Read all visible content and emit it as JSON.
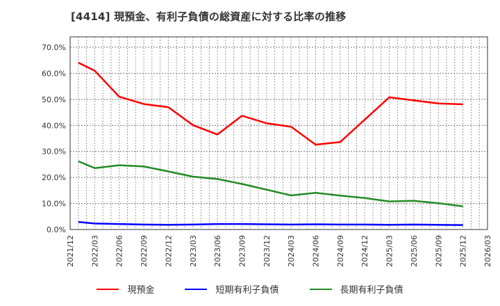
{
  "title": "[4414]  現預金、有利子負債の総資産に対する比率の推移",
  "colors": {
    "cash": "#ff0000",
    "short_debt": "#0000ff",
    "long_debt": "#228b22",
    "grid": "#999999",
    "axis": "#333333"
  },
  "legend": [
    {
      "label": "現預金",
      "color": "#ff0000"
    },
    {
      "label": "短期有利子負債",
      "color": "#0000ff"
    },
    {
      "label": "長期有利子負債",
      "color": "#228b22"
    }
  ],
  "y_ticks": [
    "0.0%",
    "10.0%",
    "20.0%",
    "30.0%",
    "40.0%",
    "50.0%",
    "60.0%",
    "70.0%"
  ],
  "x_ticks": [
    "2021/12",
    "2022/03",
    "2022/06",
    "2022/09",
    "2022/12",
    "2023/03",
    "2023/06",
    "2023/09",
    "2023/12",
    "2024/03",
    "2024/06",
    "2024/09",
    "2024/12",
    "2025/03",
    "2025/06",
    "2025/09",
    "2025/12",
    "2026/03"
  ],
  "chart_data": {
    "type": "line",
    "title": "[4414]  現預金、有利子負債の総資産に対する比率の推移",
    "xlabel": "",
    "ylabel": "",
    "ylim": [
      0,
      70
    ],
    "y_format": "percent",
    "grid": true,
    "legend_position": "bottom",
    "x": [
      "2022/01",
      "2022/03",
      "2022/06",
      "2022/09",
      "2022/12",
      "2023/03",
      "2023/06",
      "2023/09",
      "2023/12",
      "2024/03",
      "2024/06",
      "2024/09",
      "2024/12",
      "2025/03",
      "2025/06",
      "2025/09",
      "2025/12"
    ],
    "series": [
      {
        "name": "現預金",
        "color": "#ff0000",
        "values": [
          64.1,
          61.0,
          51.0,
          48.2,
          47.0,
          40.1,
          36.5,
          43.7,
          40.8,
          39.5,
          32.6,
          33.6,
          42.2,
          50.8,
          49.6,
          48.4,
          48.1
        ]
      },
      {
        "name": "短期有利子負債",
        "color": "#0000ff",
        "values": [
          2.9,
          2.3,
          2.1,
          1.9,
          1.8,
          1.9,
          2.1,
          2.1,
          2.0,
          1.9,
          2.0,
          1.9,
          1.9,
          1.8,
          1.9,
          1.8,
          1.7
        ]
      },
      {
        "name": "長期有利子負債",
        "color": "#228b22",
        "values": [
          26.2,
          23.6,
          24.7,
          24.2,
          22.3,
          20.3,
          19.4,
          17.5,
          15.3,
          13.1,
          14.1,
          13.0,
          12.1,
          10.8,
          11.0,
          10.1,
          8.9
        ]
      }
    ]
  }
}
